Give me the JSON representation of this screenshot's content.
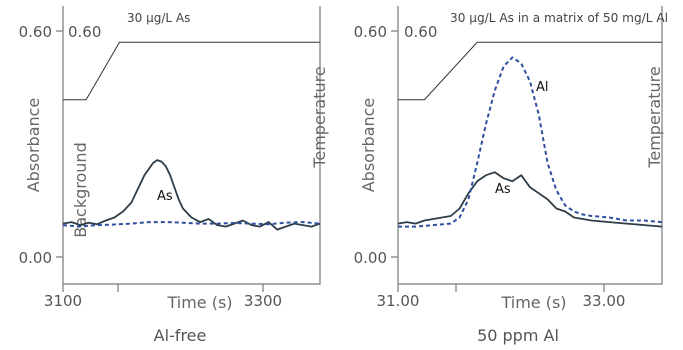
{
  "chart_data": [
    {
      "type": "line",
      "caption": "Al-free",
      "xlabel": "Time (s)",
      "ylabel_left": "Absorbance",
      "ylabel_right": "Temperature",
      "ytick_labels_outer": [
        "0.60",
        "0.00"
      ],
      "ytick_labels_inner": [
        "0.60"
      ],
      "xtick_labels": [
        "3100",
        "3300"
      ],
      "xlim": [
        3100,
        3400
      ],
      "ylim": [
        -0.2,
        0.72
      ],
      "xticks_values": [
        3100,
        3200,
        3300,
        3400
      ],
      "annotation": "30 µg/L As",
      "background_label": "Background",
      "temperature_profile": {
        "x": [
          3100,
          3127,
          3166,
          3400
        ],
        "y": [
          0.41,
          0.41,
          0.6,
          0.6
        ]
      },
      "series": [
        {
          "name": "As",
          "color": "#2f3d48",
          "style": "solid",
          "x": [
            3100,
            3110,
            3120,
            3130,
            3140,
            3150,
            3160,
            3170,
            3180,
            3185,
            3190,
            3195,
            3200,
            3205,
            3210,
            3215,
            3220,
            3225,
            3230,
            3235,
            3240,
            3250,
            3260,
            3270,
            3280,
            3290,
            3300,
            3310,
            3320,
            3330,
            3340,
            3350,
            3360,
            3370,
            3380,
            3390,
            3400
          ],
          "y": [
            0.0,
            0.005,
            -0.005,
            0.003,
            -0.002,
            0.01,
            0.02,
            0.04,
            0.07,
            0.1,
            0.13,
            0.16,
            0.18,
            0.2,
            0.21,
            0.205,
            0.19,
            0.16,
            0.12,
            0.08,
            0.05,
            0.02,
            0.005,
            0.015,
            -0.005,
            -0.01,
            0.0,
            0.01,
            -0.005,
            -0.01,
            0.005,
            -0.02,
            -0.01,
            0.0,
            -0.005,
            -0.01,
            0.0
          ]
        },
        {
          "name": "Background",
          "color": "#2e4fa0",
          "style": "dashed",
          "x": [
            3100,
            3120,
            3140,
            3160,
            3180,
            3200,
            3220,
            3240,
            3260,
            3280,
            3300,
            3320,
            3340,
            3360,
            3380,
            3400
          ],
          "y": [
            -0.005,
            -0.01,
            -0.005,
            -0.003,
            0.0,
            0.005,
            0.005,
            0.003,
            0.0,
            0.0,
            0.002,
            0.0,
            -0.002,
            0.003,
            0.005,
            0.0
          ]
        }
      ]
    },
    {
      "type": "line",
      "caption": "50 ppm Al",
      "xlabel": "Time (s)",
      "ylabel_left": "Absorbance",
      "ylabel_right": "Temperature",
      "ytick_labels_outer": [
        "0.60",
        "0.00"
      ],
      "ytick_labels_inner": [
        "0.60"
      ],
      "xtick_labels": [
        "31.00",
        "33.00"
      ],
      "xlim": [
        31.0,
        34.0
      ],
      "ylim": [
        -0.2,
        0.72
      ],
      "xticks_values": [
        31.0,
        32.0,
        33.0,
        34.0
      ],
      "annotation": "30 µg/L As in a matrix of 50 mg/L Al",
      "temperature_profile": {
        "x": [
          31.0,
          31.3,
          31.9,
          34.0
        ],
        "y": [
          0.41,
          0.41,
          0.6,
          0.6
        ]
      },
      "series": [
        {
          "name": "As",
          "color": "#2f3d48",
          "style": "solid",
          "x": [
            31.0,
            31.1,
            31.2,
            31.3,
            31.4,
            31.5,
            31.6,
            31.7,
            31.8,
            31.9,
            32.0,
            32.1,
            32.2,
            32.3,
            32.4,
            32.5,
            32.6,
            32.7,
            32.8,
            32.9,
            33.0,
            33.2,
            33.4,
            33.6,
            33.8,
            34.0
          ],
          "y": [
            0.0,
            0.005,
            0.0,
            0.01,
            0.015,
            0.02,
            0.025,
            0.05,
            0.1,
            0.14,
            0.16,
            0.17,
            0.15,
            0.14,
            0.16,
            0.12,
            0.1,
            0.08,
            0.05,
            0.04,
            0.02,
            0.01,
            0.005,
            0.0,
            -0.005,
            -0.01
          ]
        },
        {
          "name": "Al",
          "color": "#2e4fa0",
          "style": "dashed",
          "x": [
            31.0,
            31.2,
            31.4,
            31.6,
            31.7,
            31.8,
            31.9,
            32.0,
            32.1,
            32.2,
            32.3,
            32.4,
            32.5,
            32.6,
            32.7,
            32.8,
            32.9,
            33.0,
            33.1,
            33.2,
            33.4,
            33.6,
            33.8,
            34.0
          ],
          "y": [
            -0.01,
            -0.01,
            -0.005,
            0.0,
            0.02,
            0.08,
            0.2,
            0.33,
            0.44,
            0.52,
            0.55,
            0.53,
            0.47,
            0.36,
            0.2,
            0.11,
            0.06,
            0.04,
            0.03,
            0.025,
            0.02,
            0.01,
            0.01,
            0.005
          ]
        }
      ]
    }
  ]
}
